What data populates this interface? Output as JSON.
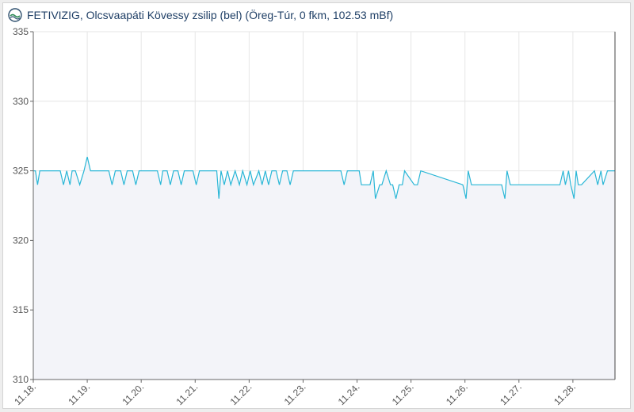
{
  "header": {
    "title": "FETIVIZIG, Olcsvaapáti Kövessy zsilip (bel) (Öreg-Túr, 0 fkm, 102.53 mBf)",
    "logo_icon": "water-drop-wave-icon"
  },
  "colors": {
    "line": "#29b6d6",
    "fill": "#f3f4f9",
    "grid": "#e6e6e6",
    "axis": "#666666",
    "marker_line": "#444444"
  },
  "chart_data": {
    "type": "line",
    "title": "FETIVIZIG, Olcsvaapáti Kövessy zsilip (bel) (Öreg-Túr, 0 fkm, 102.53 mBf)",
    "xlabel": "",
    "ylabel": "",
    "ylim": [
      310,
      335
    ],
    "yticks": [
      310,
      315,
      320,
      325,
      330,
      335
    ],
    "xlim": [
      0,
      10.78
    ],
    "xtick_values": [
      0,
      1,
      2,
      3,
      4,
      5,
      6,
      7,
      8,
      9,
      10
    ],
    "xtick_labels": [
      "11.18.",
      "11.19.",
      "11.20.",
      "11.21.",
      "11.22.",
      "11.23.",
      "11.24.",
      "11.25.",
      "11.26.",
      "11.27.",
      "11.28."
    ],
    "grid": true,
    "legend": "none",
    "area_fill": true,
    "current_marker_x": 10.78,
    "series": [
      {
        "x": [
          0.0,
          0.04,
          0.08,
          0.12,
          0.5,
          0.56,
          0.62,
          0.68,
          0.72,
          0.78,
          0.86,
          0.94,
          1.0,
          1.06,
          1.1,
          1.4,
          1.46,
          1.52,
          1.62,
          1.68,
          1.74,
          1.84,
          1.9,
          1.96,
          2.3,
          2.36,
          2.4,
          2.48,
          2.54,
          2.6,
          2.68,
          2.74,
          2.8,
          2.96,
          3.02,
          3.08,
          3.4,
          3.44,
          3.48,
          3.54,
          3.6,
          3.66,
          3.74,
          3.82,
          3.88,
          3.96,
          4.02,
          4.08,
          4.18,
          4.24,
          4.3,
          4.36,
          4.42,
          4.5,
          4.56,
          4.62,
          4.7,
          4.76,
          4.82,
          5.7,
          5.76,
          5.82,
          6.04,
          6.08,
          6.24,
          6.3,
          6.34,
          6.42,
          6.46,
          6.54,
          6.62,
          6.66,
          6.72,
          6.78,
          6.84,
          6.88,
          7.06,
          7.12,
          7.18,
          7.96,
          8.02,
          8.06,
          8.12,
          8.68,
          8.74,
          8.78,
          8.84,
          9.76,
          9.82,
          9.86,
          9.92,
          9.96,
          10.02,
          10.06,
          10.1,
          10.16,
          10.4,
          10.46,
          10.52,
          10.56,
          10.64,
          10.7,
          10.78
        ],
        "values": [
          325,
          325,
          324,
          325,
          325,
          324,
          325,
          324,
          325,
          325,
          324,
          325,
          326,
          325,
          325,
          325,
          324,
          325,
          325,
          324,
          325,
          325,
          324,
          325,
          325,
          324,
          325,
          325,
          324,
          325,
          325,
          324,
          325,
          325,
          324,
          325,
          325,
          323,
          325,
          324,
          325,
          324,
          325,
          324,
          325,
          324,
          325,
          324,
          325,
          324,
          325,
          324,
          325,
          325,
          324,
          325,
          325,
          324,
          325,
          325,
          324,
          325,
          325,
          324,
          324,
          325,
          323,
          324,
          324,
          325,
          324,
          324,
          323,
          324,
          324,
          325,
          324,
          324,
          325,
          324,
          323,
          325,
          324,
          324,
          323,
          325,
          324,
          324,
          325,
          324,
          325,
          324,
          323,
          325,
          324,
          324,
          325,
          324,
          325,
          324,
          325,
          325,
          325
        ]
      }
    ]
  }
}
